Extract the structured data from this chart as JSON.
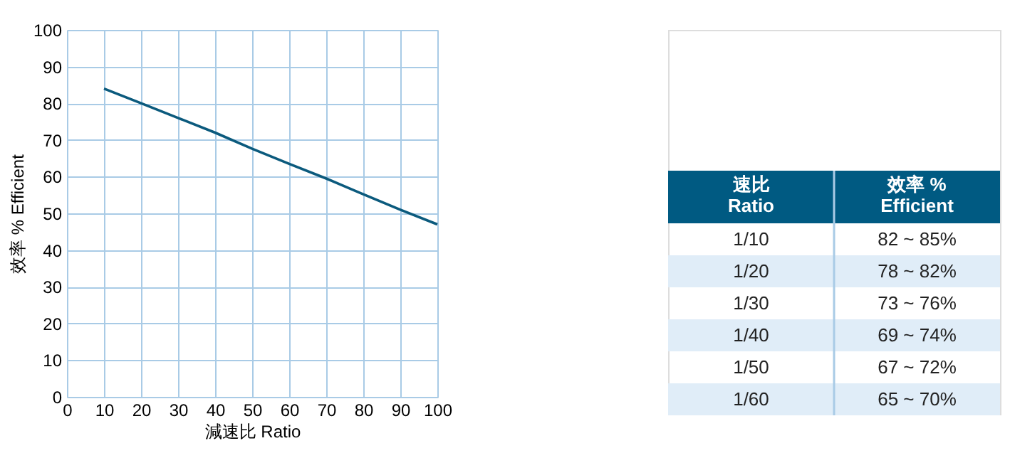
{
  "chart_data": [
    {
      "type": "line",
      "xlabel": "減速比 Ratio",
      "ylabel": "效率 % Efficient",
      "x": [
        10,
        20,
        30,
        40,
        50,
        60,
        70,
        80,
        90,
        100
      ],
      "series": [
        {
          "color": "#0b5a7d",
          "values": [
            84,
            80,
            76,
            72,
            67.6,
            63.5,
            59.5,
            55.2,
            51,
            47
          ]
        }
      ],
      "xlim": [
        0,
        100
      ],
      "xticks": [
        0,
        10,
        20,
        30,
        40,
        50,
        60,
        70,
        80,
        90,
        100
      ],
      "ylim": [
        0,
        100
      ],
      "yticks": [
        0,
        10,
        20,
        30,
        40,
        50,
        60,
        70,
        80,
        90,
        100
      ],
      "grid": true
    },
    {
      "type": "other",
      "annotations": [
        "速比\nRatio",
        "效率 %\nEfficient",
        "1/10",
        "82 ~ 85%",
        "1/20",
        "78 ~ 82%",
        "1/30",
        "73 ~ 76%",
        "1/40",
        "69 ~ 74%",
        "1/50",
        "67 ~ 72%",
        "1/60",
        "65 ~ 70%"
      ]
    }
  ]
}
